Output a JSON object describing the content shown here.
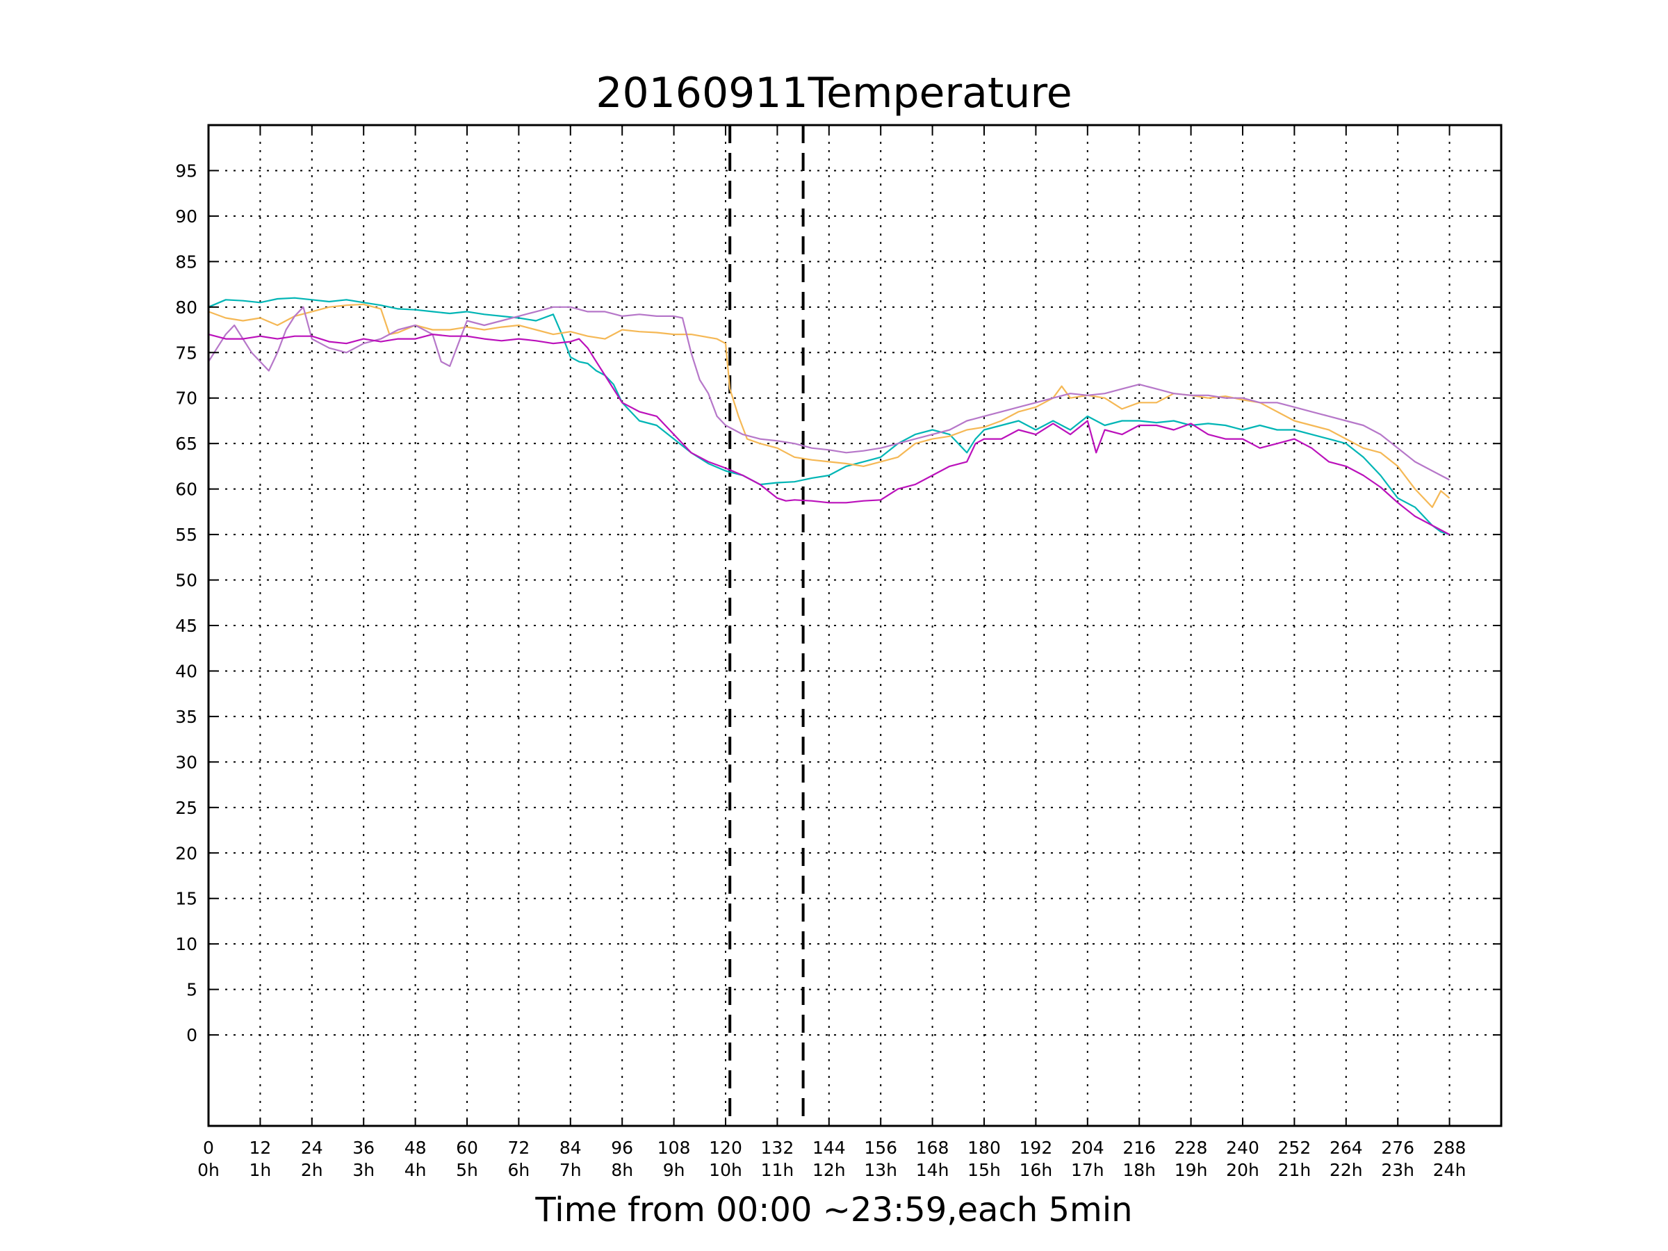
{
  "chart_data": {
    "type": "line",
    "title": "20160911Temperature",
    "xlabel": "Time from 00:00 ~23:59,each 5min",
    "ylabel": "",
    "xlim": [
      0,
      300
    ],
    "ylim": [
      -10,
      100
    ],
    "x_ticks": [
      0,
      12,
      24,
      36,
      48,
      60,
      72,
      84,
      96,
      108,
      120,
      132,
      144,
      156,
      168,
      180,
      192,
      204,
      216,
      228,
      240,
      252,
      264,
      276,
      288
    ],
    "x_tick_labels": [
      "0",
      "12",
      "24",
      "36",
      "48",
      "60",
      "72",
      "84",
      "96",
      "108",
      "120",
      "132",
      "144",
      "156",
      "168",
      "180",
      "192",
      "204",
      "216",
      "228",
      "240",
      "252",
      "264",
      "276",
      "288"
    ],
    "x_tick_hour_labels": [
      "0h",
      "1h",
      "2h",
      "3h",
      "4h",
      "5h",
      "6h",
      "7h",
      "8h",
      "9h",
      "10h",
      "11h",
      "12h",
      "13h",
      "14h",
      "15h",
      "16h",
      "17h",
      "18h",
      "19h",
      "20h",
      "21h",
      "22h",
      "23h",
      "24h"
    ],
    "y_ticks": [
      0,
      5,
      10,
      15,
      20,
      25,
      30,
      35,
      40,
      45,
      50,
      55,
      60,
      65,
      70,
      75,
      80,
      85,
      90,
      95
    ],
    "y_tick_labels": [
      "0",
      "5",
      "10",
      "15",
      "20",
      "25",
      "30",
      "35",
      "40",
      "45",
      "50",
      "55",
      "60",
      "65",
      "70",
      "75",
      "80",
      "85",
      "90",
      "95"
    ],
    "grid": true,
    "vertical_markers": [
      121,
      138
    ],
    "series": [
      {
        "color": "#00b5b5",
        "x": [
          0,
          4,
          8,
          12,
          16,
          20,
          24,
          28,
          32,
          36,
          40,
          44,
          48,
          52,
          56,
          60,
          64,
          68,
          72,
          76,
          80,
          82,
          84,
          86,
          88,
          90,
          92,
          94,
          96,
          100,
          104,
          108,
          112,
          116,
          120,
          124,
          128,
          132,
          136,
          140,
          144,
          148,
          152,
          156,
          160,
          164,
          168,
          172,
          176,
          178,
          180,
          184,
          188,
          192,
          196,
          200,
          204,
          208,
          212,
          216,
          220,
          224,
          228,
          232,
          236,
          240,
          244,
          248,
          252,
          256,
          260,
          264,
          268,
          272,
          276,
          280,
          284,
          286,
          288
        ],
        "y": [
          80,
          80.8,
          80.7,
          80.5,
          80.9,
          81,
          80.8,
          80.6,
          80.8,
          80.5,
          80.2,
          79.8,
          79.7,
          79.5,
          79.3,
          79.5,
          79.2,
          79,
          78.8,
          78.5,
          79.2,
          77,
          74.5,
          74,
          73.8,
          73,
          72.5,
          71.5,
          69.5,
          67.5,
          67,
          65.5,
          64,
          62.8,
          62,
          61.5,
          60.5,
          60.7,
          60.8,
          61.2,
          61.5,
          62.5,
          63,
          63.5,
          65,
          66,
          66.5,
          66,
          64,
          65.5,
          66.5,
          67,
          67.5,
          66.5,
          67.5,
          66.5,
          68,
          67,
          67.5,
          67.5,
          67.3,
          67.5,
          67,
          67.2,
          67,
          66.5,
          67,
          66.5,
          66.5,
          66,
          65.5,
          65,
          63.5,
          61.5,
          59,
          58,
          56,
          55.3,
          55
        ]
      },
      {
        "color": "#f5b855",
        "x": [
          0,
          4,
          8,
          12,
          16,
          20,
          24,
          28,
          32,
          36,
          40,
          42,
          44,
          48,
          52,
          56,
          60,
          64,
          68,
          72,
          76,
          80,
          84,
          88,
          92,
          96,
          100,
          104,
          108,
          112,
          118,
          120,
          121,
          123,
          125,
          128,
          132,
          136,
          140,
          144,
          148,
          152,
          156,
          160,
          164,
          168,
          172,
          176,
          180,
          184,
          188,
          192,
          196,
          198,
          200,
          204,
          208,
          212,
          216,
          220,
          224,
          228,
          232,
          236,
          240,
          244,
          248,
          252,
          256,
          260,
          264,
          268,
          272,
          276,
          280,
          284,
          286,
          288
        ],
        "y": [
          79.5,
          78.8,
          78.5,
          78.8,
          78,
          79,
          79.5,
          80,
          80.2,
          80.3,
          79.8,
          77,
          77.2,
          78,
          77.5,
          77.5,
          77.8,
          77.5,
          77.8,
          78,
          77.5,
          77,
          77.3,
          76.8,
          76.5,
          77.5,
          77.3,
          77.2,
          77,
          77,
          76.5,
          76,
          71,
          68,
          65.5,
          65,
          64.5,
          63.5,
          63.2,
          63,
          62.8,
          62.5,
          63,
          63.5,
          65,
          65.5,
          65.8,
          66.5,
          66.8,
          67.5,
          68.5,
          69,
          70,
          71.3,
          70,
          70.3,
          70,
          68.8,
          69.5,
          69.5,
          70.5,
          70.3,
          70,
          70.2,
          69.8,
          69.5,
          68.5,
          67.5,
          67,
          66.5,
          65.5,
          64.5,
          64,
          62.5,
          60,
          58,
          59.8,
          59
        ]
      },
      {
        "color": "#b677c9",
        "x": [
          0,
          2,
          4,
          6,
          8,
          10,
          12,
          14,
          16,
          18,
          20,
          22,
          24,
          28,
          32,
          36,
          40,
          44,
          48,
          52,
          54,
          56,
          58,
          60,
          64,
          68,
          72,
          76,
          80,
          84,
          88,
          92,
          96,
          100,
          104,
          108,
          110,
          112,
          114,
          116,
          118,
          120,
          124,
          128,
          132,
          136,
          140,
          144,
          148,
          152,
          156,
          160,
          164,
          168,
          172,
          176,
          180,
          184,
          188,
          192,
          196,
          200,
          204,
          208,
          212,
          216,
          220,
          224,
          228,
          232,
          236,
          240,
          244,
          248,
          252,
          256,
          260,
          264,
          268,
          272,
          276,
          280,
          284,
          288
        ],
        "y": [
          74,
          75.5,
          77,
          78,
          76.5,
          75,
          74,
          73,
          75,
          77.5,
          79,
          80,
          76.5,
          75.5,
          75,
          76,
          76.5,
          77.5,
          78,
          77,
          74,
          73.5,
          76,
          78.5,
          78,
          78.5,
          79,
          79.5,
          80,
          80,
          79.5,
          79.5,
          79,
          79.2,
          79,
          79,
          78.8,
          75,
          72,
          70.5,
          68,
          67,
          66,
          65.5,
          65.3,
          65,
          64.5,
          64.3,
          64,
          64.2,
          64.5,
          65,
          65.5,
          66,
          66.5,
          67.5,
          68,
          68.5,
          69,
          69.5,
          70,
          70.5,
          70.3,
          70.5,
          71,
          71.5,
          71,
          70.5,
          70.3,
          70.3,
          70,
          70,
          69.5,
          69.5,
          69,
          68.5,
          68,
          67.5,
          67,
          66,
          64.5,
          63,
          62,
          61
        ]
      },
      {
        "color": "#bb11bb",
        "x": [
          0,
          4,
          8,
          12,
          16,
          20,
          24,
          28,
          32,
          36,
          40,
          44,
          48,
          52,
          56,
          60,
          64,
          68,
          72,
          76,
          80,
          84,
          86,
          88,
          90,
          92,
          94,
          96,
          100,
          104,
          108,
          112,
          116,
          120,
          124,
          128,
          132,
          134,
          136,
          140,
          144,
          148,
          152,
          156,
          160,
          164,
          168,
          172,
          176,
          178,
          180,
          184,
          188,
          192,
          196,
          200,
          204,
          206,
          208,
          212,
          216,
          220,
          224,
          228,
          232,
          236,
          240,
          244,
          248,
          252,
          256,
          260,
          264,
          268,
          272,
          276,
          280,
          284,
          288
        ],
        "y": [
          77,
          76.5,
          76.5,
          76.8,
          76.5,
          76.8,
          76.8,
          76.2,
          76,
          76.5,
          76.2,
          76.5,
          76.5,
          77,
          76.8,
          76.8,
          76.5,
          76.3,
          76.5,
          76.3,
          76,
          76.2,
          76.5,
          75.5,
          74,
          72.5,
          71,
          69.5,
          68.5,
          68,
          66,
          64,
          63,
          62.3,
          61.5,
          60.5,
          59,
          58.7,
          58.8,
          58.7,
          58.5,
          58.5,
          58.7,
          58.8,
          60,
          60.5,
          61.5,
          62.5,
          63,
          65,
          65.5,
          65.5,
          66.5,
          66,
          67.2,
          66,
          67.5,
          64,
          66.5,
          66,
          67,
          67,
          66.5,
          67.2,
          66,
          65.5,
          65.5,
          64.5,
          65,
          65.5,
          64.5,
          63,
          62.5,
          61.5,
          60.2,
          58.5,
          57,
          56,
          55
        ]
      }
    ]
  }
}
